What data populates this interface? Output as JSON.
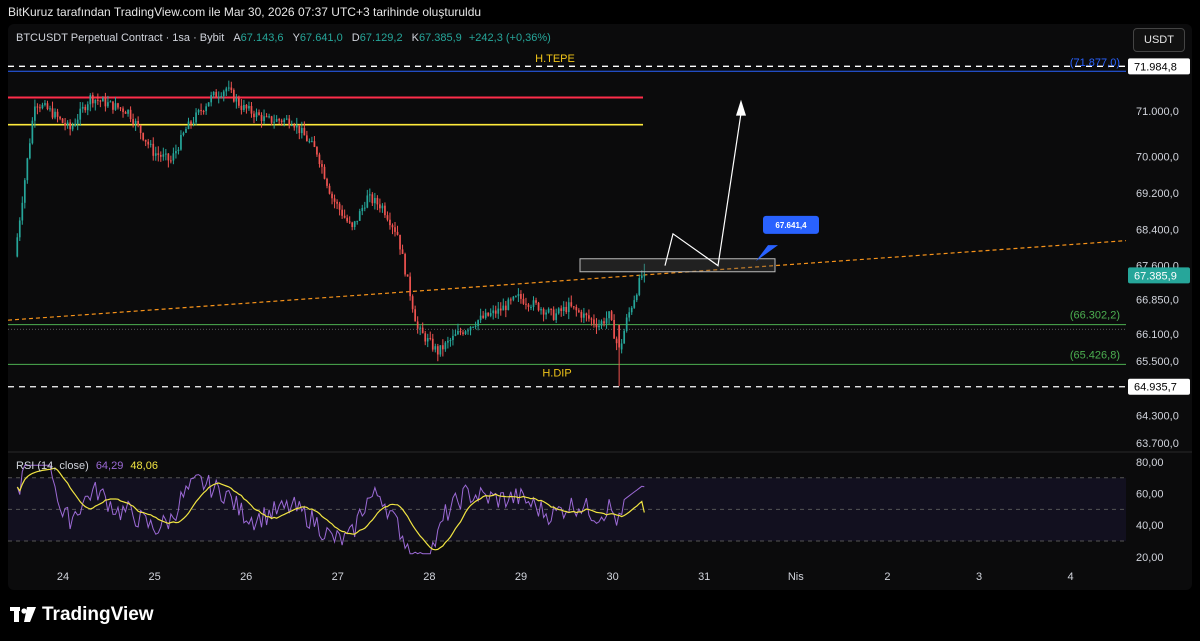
{
  "header": {
    "attribution": "BitKuruz tarafından TradingView.com ile Mar 30, 2026 07:37 UTC+3 tarihinde oluşturuldu"
  },
  "legend": {
    "symbol": "BTCUSDT Perpetual Contract · 1sa · Bybit",
    "open_label": "A",
    "open": "67.143,6",
    "high_label": "Y",
    "high": "67.641,0",
    "low_label": "D",
    "low": "67.129,2",
    "close_label": "K",
    "close": "67.385,9",
    "change": "+242,3 (+0,36%)"
  },
  "currency_button": "USDT",
  "rsi_legend": {
    "label": "RSI (14, close)",
    "rsi": "64,29",
    "ma": "48,06"
  },
  "brand": "TradingView",
  "colors": {
    "up": "#26a69a",
    "down": "#ef5350",
    "resistance_red": "#ff2d4a",
    "resistance_yellow": "#ffeb3b",
    "blue_level": "#2962ff",
    "support_green": "#4caf50",
    "trendline": "#f7931a",
    "rsi_line": "#9c6ad6",
    "rsi_ma": "#f0e442",
    "callout": "#2962ff"
  },
  "chart_data": {
    "type": "candlestick",
    "timeframe": "1h",
    "price_axis": {
      "ticks": [
        "71.000,0",
        "70.000,0",
        "69.200,0",
        "68.400,0",
        "67.600,0",
        "66.850,0",
        "66.100,0",
        "65.500,0",
        "64.300,0",
        "63.700,0"
      ],
      "tick_values": [
        71000,
        70000,
        69200,
        68400,
        67600,
        66850,
        66100,
        65500,
        64300,
        63700
      ],
      "ylim": [
        63500,
        72300
      ]
    },
    "time_axis": {
      "labels": [
        "24",
        "25",
        "26",
        "27",
        "28",
        "29",
        "30",
        "31",
        "Nis",
        "2",
        "3",
        "4"
      ]
    },
    "last_price": {
      "text": "67.385,9",
      "value": 67385.9
    },
    "horizontal_levels": [
      {
        "name": "H.TEPE",
        "value": 71984.8,
        "price_label": "71.984,8",
        "style": "dashed",
        "color": "#ffffff"
      },
      {
        "name": "blue",
        "value": 71877,
        "label": "(71.877,0)",
        "color": "#2962ff"
      },
      {
        "name": "red",
        "value": 71300,
        "color": "#ff2d4a"
      },
      {
        "name": "yellow",
        "value": 70700,
        "color": "#ffeb3b"
      },
      {
        "name": "support-1",
        "value": 66302.2,
        "label": "(66.302,2)",
        "color": "#4caf50"
      },
      {
        "name": "support-2",
        "value": 65426.8,
        "label": "(65.426,8)",
        "color": "#4caf50"
      },
      {
        "name": "H.DIP",
        "value": 64935.7,
        "price_label": "64.935,7",
        "style": "dashed",
        "color": "#ffffff"
      }
    ],
    "annotations": {
      "top_label": "H.TEPE",
      "bottom_label": "H.DIP",
      "callout": "67.641,4",
      "callout_value": 67641.4
    },
    "rsi": {
      "axis_ticks": [
        "80,00",
        "60,00",
        "40,00",
        "20,00"
      ],
      "tick_values": [
        80,
        60,
        40,
        20
      ],
      "bands": [
        70,
        50,
        30
      ],
      "last_rsi": 64.29,
      "last_ma": 48.06
    }
  }
}
